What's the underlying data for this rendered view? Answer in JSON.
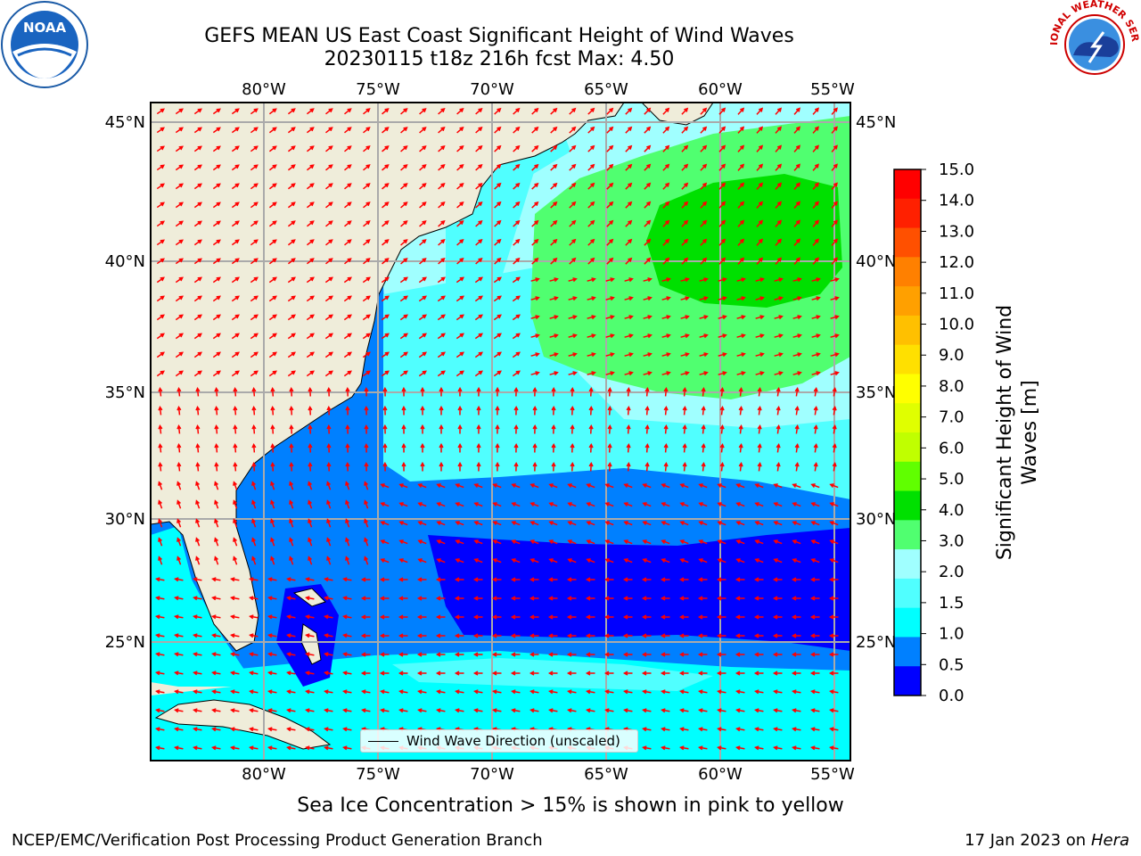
{
  "header": {
    "title_line1": "GEFS MEAN US East Coast Significant Height of Wind Waves",
    "title_line2": "20230115 t18z 216h fcst   Max: 4.50"
  },
  "logos": {
    "left": {
      "text": "NOAA"
    },
    "right": {
      "text": "NATIONAL WEATHER SERVICE"
    }
  },
  "map": {
    "lon_labels": [
      "80°W",
      "75°W",
      "70°W",
      "65°W",
      "60°W",
      "55°W"
    ],
    "lat_labels": [
      "45°N",
      "40°N",
      "35°N",
      "30°N",
      "25°N"
    ],
    "legend_label": "Wind Wave Direction (unscaled)"
  },
  "colorbar": {
    "title": "Significant Height of Wind Waves [m]",
    "ticks": [
      "15.0",
      "14.0",
      "13.0",
      "12.0",
      "11.0",
      "10.0",
      "9.0",
      "8.0",
      "7.0",
      "6.0",
      "5.0",
      "4.0",
      "3.0",
      "2.0",
      "1.5",
      "1.0",
      "0.5",
      "0.0"
    ],
    "colors": [
      "#ff0000",
      "#ff2000",
      "#ff5000",
      "#ff8000",
      "#ffa000",
      "#ffc000",
      "#ffe000",
      "#ffff00",
      "#e0ff00",
      "#c0ff00",
      "#60ff00",
      "#00e000",
      "#50ff70",
      "#a0ffff",
      "#50ffff",
      "#00ffff",
      "#0080ff",
      "#0000ff"
    ]
  },
  "footer": {
    "note": "Sea Ice Concentration > 15% is shown in pink to yellow",
    "left": "NCEP/EMC/Verification Post Processing Product Generation Branch",
    "right_prefix": "17 Jan 2023 on ",
    "right_host": "Hera"
  }
}
